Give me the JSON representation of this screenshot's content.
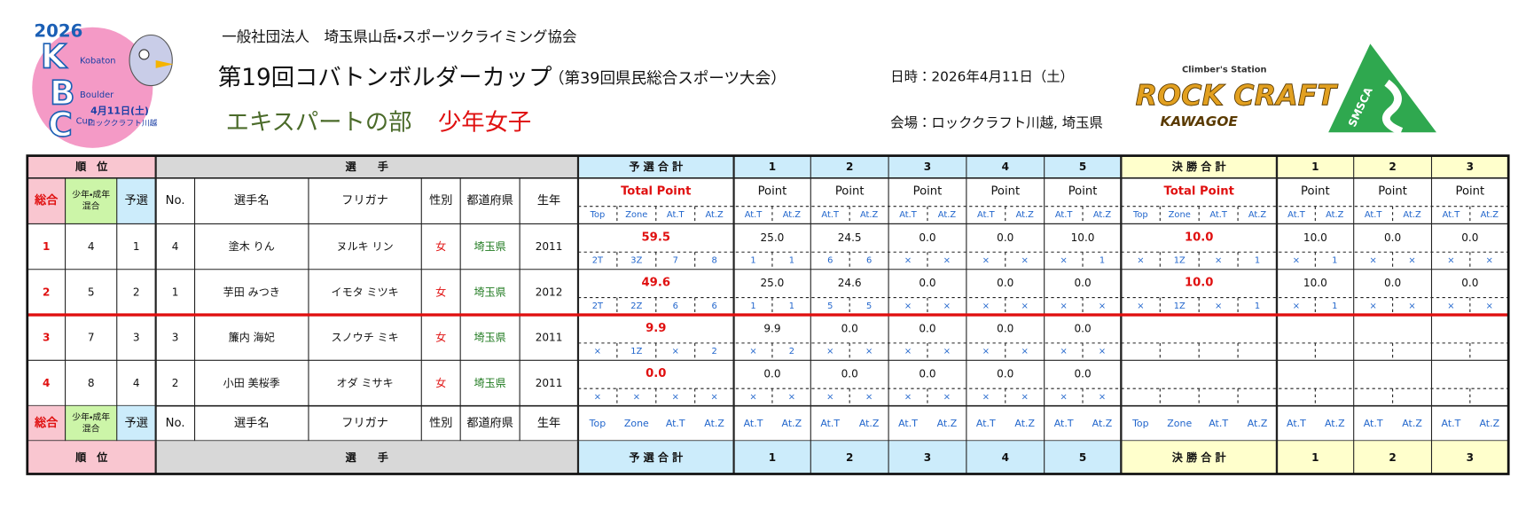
{
  "header": {
    "organization": "一般社団法人　埼玉県山岳・スポーツクライミング協会",
    "title": "第19回コバトンボルダーカップ",
    "subtitle": "（第39回県民総合スポーツ大会）",
    "category": "エキスパートの部",
    "division": "少年女子",
    "date": "日時：2026年4月11日（土）",
    "venue": "会場：ロッククラフト川越, 埼玉県"
  },
  "logos": {
    "kbc": {
      "year": "2026",
      "letters": [
        "K",
        "B",
        "C"
      ],
      "words": [
        "Kobaton",
        "Boulder",
        "Cup"
      ],
      "date": "4月11日(土)",
      "place": "ロッククラフト川越"
    },
    "rockcraft": {
      "tagline": "Climber's Station",
      "name": "ROCK CRAFT",
      "city": "KAWAGOE"
    },
    "smsca": "SMSCA"
  },
  "table": {
    "groups": {
      "rank": "順　位",
      "player": "選　　手",
      "qualifier": "予 選 合 計",
      "problems": [
        "1",
        "2",
        "3",
        "4",
        "5"
      ],
      "final": "決 勝 合 計",
      "final_problems": [
        "1",
        "2",
        "3"
      ]
    },
    "sub_headers": [
      "総合",
      [
        "少年・成年",
        "混合"
      ],
      "予選",
      "No.",
      "選手名",
      "フリガナ",
      "性別",
      "都道府県",
      "生年"
    ],
    "total_point": "Total Point",
    "point": "Point",
    "qual_labels": [
      "Top",
      "Zone",
      "At.T",
      "At.Z"
    ],
    "problem_labels": [
      "At.T",
      "At.Z"
    ],
    "rows": [
      {
        "rank": "1",
        "mixed": "4",
        "qual_rank": "1",
        "no": "4",
        "name": "塗木 りん",
        "kana": "ヌルキ リン",
        "sex": "女",
        "pref": "埼玉県",
        "year": "2011",
        "qual_total": "59.5",
        "qual_detail": [
          "2T",
          "3Z",
          "7",
          "8"
        ],
        "problems": [
          {
            "point": "25.0",
            "at": [
              "1",
              "1"
            ]
          },
          {
            "point": "24.5",
            "at": [
              "6",
              "6"
            ]
          },
          {
            "point": "0.0",
            "at": [
              "×",
              "×"
            ]
          },
          {
            "point": "0.0",
            "at": [
              "×",
              "×"
            ]
          },
          {
            "point": "10.0",
            "at": [
              "×",
              "1"
            ]
          }
        ],
        "final_total": "10.0",
        "final_detail": [
          "×",
          "1Z",
          "×",
          "1"
        ],
        "finals": [
          {
            "point": "10.0",
            "at": [
              "×",
              "1"
            ]
          },
          {
            "point": "0.0",
            "at": [
              "×",
              "×"
            ]
          },
          {
            "point": "0.0",
            "at": [
              "×",
              "×"
            ]
          }
        ]
      },
      {
        "rank": "2",
        "mixed": "5",
        "qual_rank": "2",
        "no": "1",
        "name": "芋田 みつき",
        "kana": "イモタ ミツキ",
        "sex": "女",
        "pref": "埼玉県",
        "year": "2012",
        "qual_total": "49.6",
        "qual_detail": [
          "2T",
          "2Z",
          "6",
          "6"
        ],
        "problems": [
          {
            "point": "25.0",
            "at": [
              "1",
              "1"
            ]
          },
          {
            "point": "24.6",
            "at": [
              "5",
              "5"
            ]
          },
          {
            "point": "0.0",
            "at": [
              "×",
              "×"
            ]
          },
          {
            "point": "0.0",
            "at": [
              "×",
              "×"
            ]
          },
          {
            "point": "0.0",
            "at": [
              "×",
              "×"
            ]
          }
        ],
        "final_total": "10.0",
        "final_detail": [
          "×",
          "1Z",
          "×",
          "1"
        ],
        "finals": [
          {
            "point": "10.0",
            "at": [
              "×",
              "1"
            ]
          },
          {
            "point": "0.0",
            "at": [
              "×",
              "×"
            ]
          },
          {
            "point": "0.0",
            "at": [
              "×",
              "×"
            ]
          }
        ]
      },
      {
        "rank": "3",
        "mixed": "7",
        "qual_rank": "3",
        "no": "3",
        "name": "簾内 海妃",
        "kana": "スノウチ ミキ",
        "sex": "女",
        "pref": "埼玉県",
        "year": "2011",
        "qual_total": "9.9",
        "qual_detail": [
          "×",
          "1Z",
          "×",
          "2"
        ],
        "problems": [
          {
            "point": "9.9",
            "at": [
              "×",
              "2"
            ]
          },
          {
            "point": "0.0",
            "at": [
              "×",
              "×"
            ]
          },
          {
            "point": "0.0",
            "at": [
              "×",
              "×"
            ]
          },
          {
            "point": "0.0",
            "at": [
              "×",
              "×"
            ]
          },
          {
            "point": "0.0",
            "at": [
              "×",
              "×"
            ]
          }
        ]
      },
      {
        "rank": "4",
        "mixed": "8",
        "qual_rank": "4",
        "no": "2",
        "name": "小田 美桜季",
        "kana": "オダ ミサキ",
        "sex": "女",
        "pref": "埼玉県",
        "year": "2011",
        "qual_total": "0.0",
        "qual_detail": [
          "×",
          "×",
          "×",
          "×"
        ],
        "problems": [
          {
            "point": "0.0",
            "at": [
              "×",
              "×"
            ]
          },
          {
            "point": "0.0",
            "at": [
              "×",
              "×"
            ]
          },
          {
            "point": "0.0",
            "at": [
              "×",
              "×"
            ]
          },
          {
            "point": "0.0",
            "at": [
              "×",
              "×"
            ]
          },
          {
            "point": "0.0",
            "at": [
              "×",
              "×"
            ]
          }
        ]
      }
    ]
  }
}
